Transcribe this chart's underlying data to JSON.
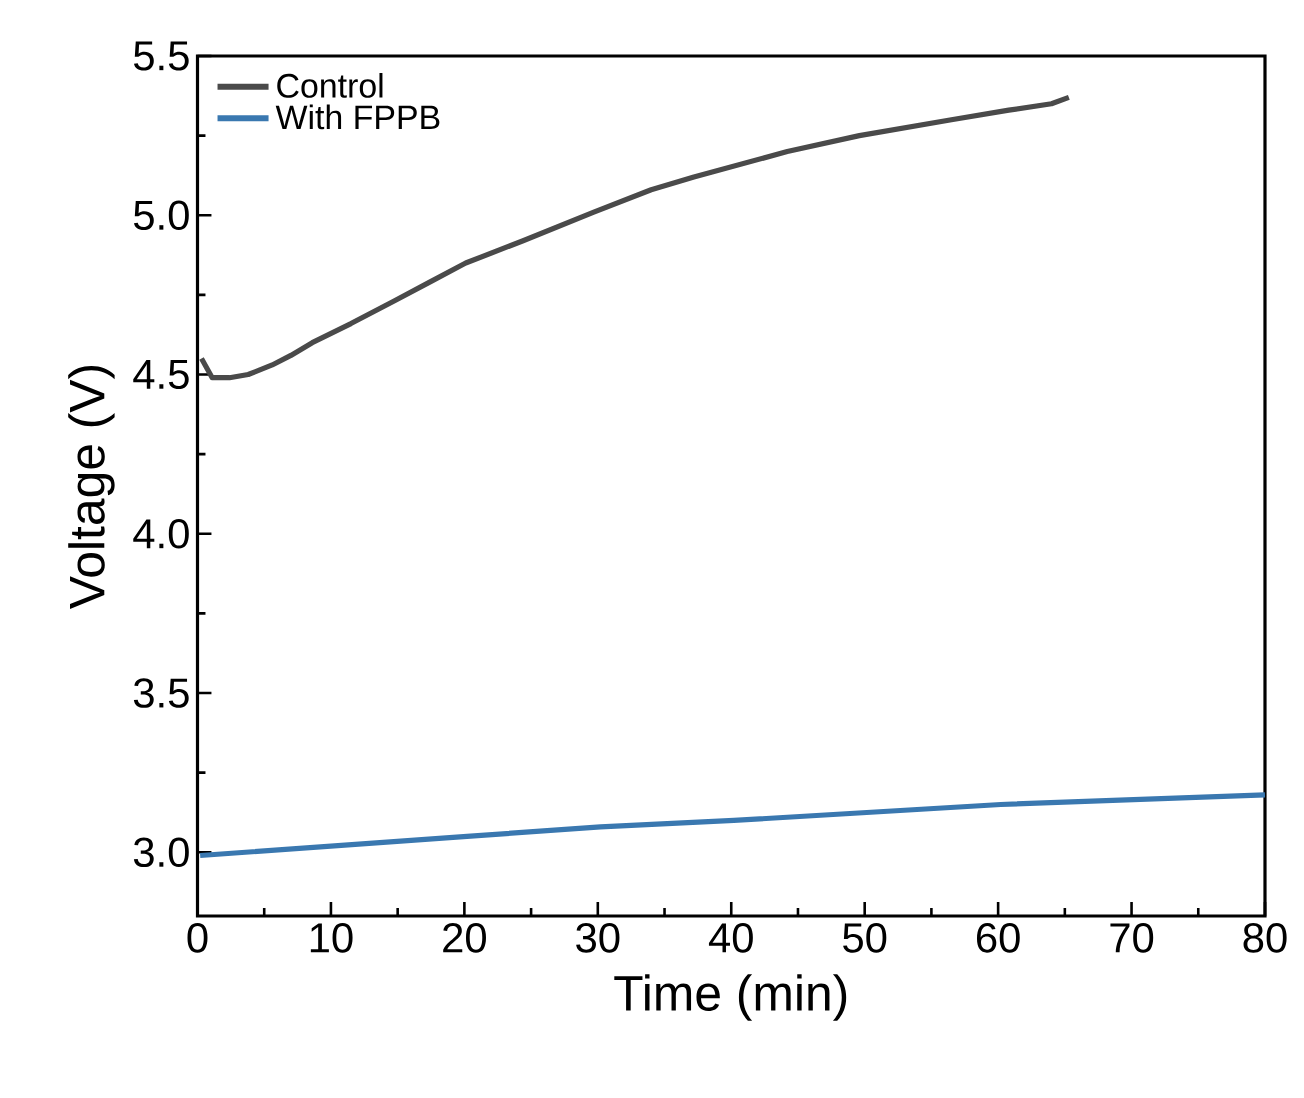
{
  "chart_data": {
    "type": "line",
    "xlabel": "Time (min)",
    "ylabel": "Voltage (V)",
    "xlim": [
      0,
      80
    ],
    "ylim": [
      2.8,
      5.5
    ],
    "xticks": [
      0,
      10,
      20,
      30,
      40,
      50,
      60,
      70,
      80
    ],
    "yticks": [
      {
        "value": 3,
        "label": "3.0"
      },
      3.5,
      {
        "value": 4,
        "label": "4.0"
      },
      4.5,
      {
        "value": 5,
        "label": "5.0"
      },
      5.5
    ],
    "legend": "top left",
    "grid": false,
    "marker": "none",
    "line_style": "solid",
    "series": [
      {
        "name": "Control",
        "color": "#4a4a4a",
        "x": [
          0.3,
          1.1,
          2.4,
          3.8,
          5.6,
          7.0,
          8.6,
          11.5,
          14.7,
          17.4,
          20.1,
          24.4,
          29.7,
          34.0,
          37.2,
          44.2,
          49.6,
          56.5,
          60.8,
          64.0,
          65.3
        ],
        "values": [
          4.55,
          4.49,
          4.49,
          4.5,
          4.53,
          4.56,
          4.6,
          4.66,
          4.73,
          4.79,
          4.85,
          4.92,
          5.01,
          5.08,
          5.12,
          5.2,
          5.25,
          5.3,
          5.33,
          5.35,
          5.37
        ]
      },
      {
        "name": "With FPPB",
        "color": "#3a78b0",
        "x": [
          0.2,
          20.2,
          30.2,
          40.2,
          60.2,
          80
        ],
        "values": [
          2.99,
          3.05,
          3.08,
          3.1,
          3.15,
          3.18
        ]
      }
    ]
  }
}
